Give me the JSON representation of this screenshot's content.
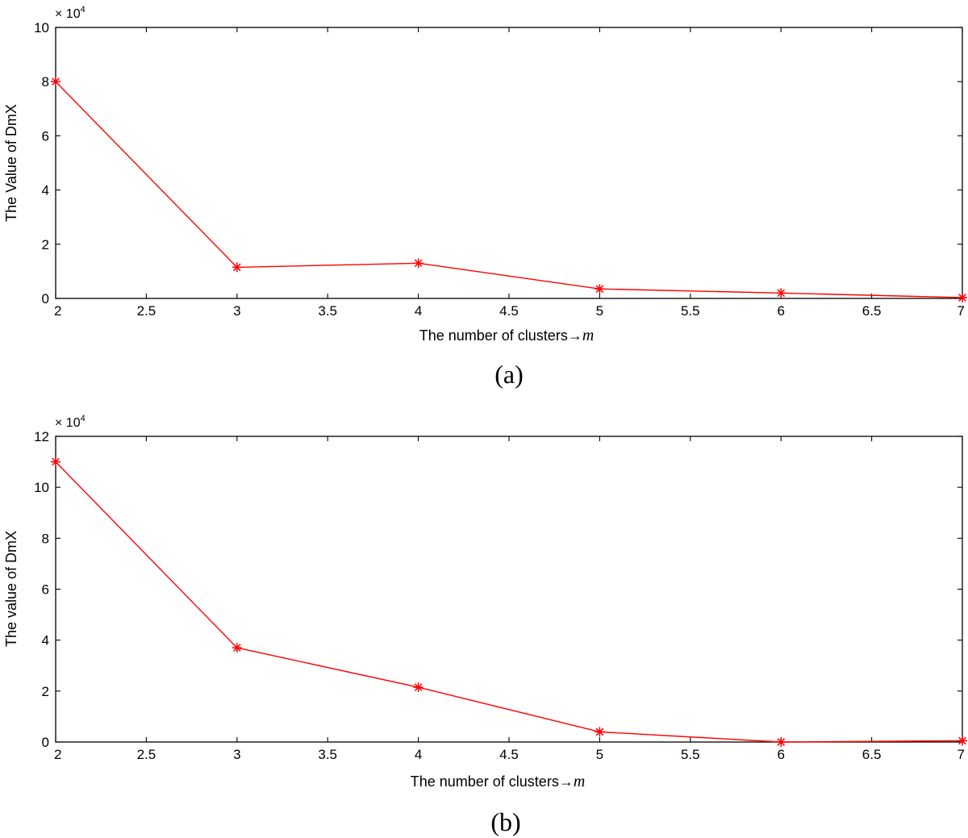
{
  "chart_data": [
    {
      "type": "line",
      "panel_label": "(a)",
      "xlabel": "The number of clusters→",
      "xlabel_var": "m",
      "ylabel": "The Value of DmX",
      "y_multiplier": "× 10",
      "y_multiplier_exp": "4",
      "xlim": [
        2,
        7
      ],
      "ylim": [
        0,
        10
      ],
      "xticks": [
        2,
        2.5,
        3,
        3.5,
        4,
        4.5,
        5,
        5.5,
        6,
        6.5,
        7
      ],
      "yticks": [
        0,
        2,
        4,
        6,
        8,
        10
      ],
      "grid": false,
      "series": [
        {
          "color": "#ff0000",
          "marker": "*",
          "x": [
            2,
            3,
            4,
            5,
            6,
            7
          ],
          "y": [
            8.0,
            1.15,
            1.3,
            0.35,
            0.2,
            0.03
          ]
        }
      ]
    },
    {
      "type": "line",
      "panel_label": "(b)",
      "xlabel": "The number of clusters→",
      "xlabel_var": "m",
      "ylabel": "The value of DmX",
      "y_multiplier": "× 10",
      "y_multiplier_exp": "4",
      "xlim": [
        2,
        7
      ],
      "ylim": [
        0,
        12
      ],
      "xticks": [
        2,
        2.5,
        3,
        3.5,
        4,
        4.5,
        5,
        5.5,
        6,
        6.5,
        7
      ],
      "yticks": [
        0,
        2,
        4,
        6,
        8,
        10,
        12
      ],
      "grid": false,
      "series": [
        {
          "color": "#ff0000",
          "marker": "*",
          "x": [
            2,
            3,
            4,
            5,
            6,
            7
          ],
          "y": [
            11.0,
            3.7,
            2.15,
            0.4,
            0.0,
            0.05
          ]
        }
      ]
    }
  ]
}
